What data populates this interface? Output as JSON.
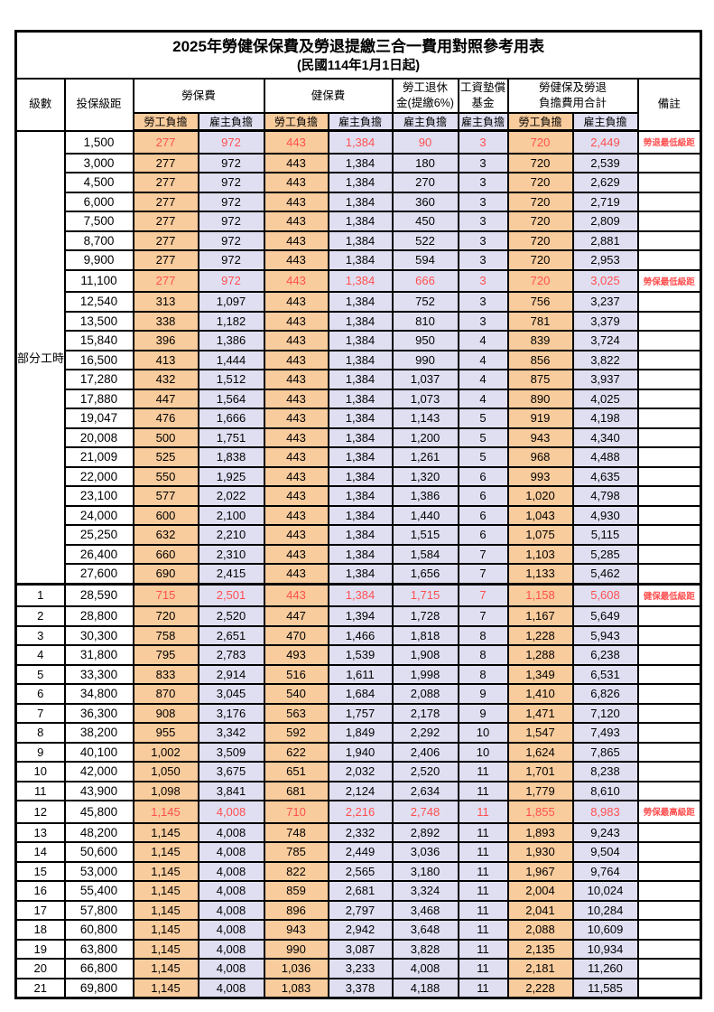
{
  "title": "2025年勞健保保費及勞退提繳三合一費用對照參考用表",
  "subtitle": "(民國114年1月1日起)",
  "colors": {
    "employee_bg": "#F9CC9D",
    "employer_bg": "#E0DFF2",
    "highlight_text": "#FF5050",
    "border": "#000000"
  },
  "header": {
    "level": "級數",
    "bracket": "投保級距",
    "labor_ins": "勞保費",
    "health_ins": "健保費",
    "pension": "勞工退休\n金(提繳6%)",
    "wage_fund": "工資墊償\n基金",
    "total": "勞健保及勞退\n負擔費用合計",
    "note": "備註",
    "employee": "勞工負擔",
    "employer": "雇主負擔"
  },
  "part_time_label": "部分工時",
  "rows": [
    {
      "level": "",
      "bracket": "1,500",
      "values": [
        "277",
        "972",
        "443",
        "1,384",
        "90",
        "3",
        "720",
        "2,449"
      ],
      "note": "勞退最低級距"
    },
    {
      "level": "",
      "bracket": "3,000",
      "values": [
        "277",
        "972",
        "443",
        "1,384",
        "180",
        "3",
        "720",
        "2,539"
      ],
      "note": ""
    },
    {
      "level": "",
      "bracket": "4,500",
      "values": [
        "277",
        "972",
        "443",
        "1,384",
        "270",
        "3",
        "720",
        "2,629"
      ],
      "note": ""
    },
    {
      "level": "",
      "bracket": "6,000",
      "values": [
        "277",
        "972",
        "443",
        "1,384",
        "360",
        "3",
        "720",
        "2,719"
      ],
      "note": ""
    },
    {
      "level": "",
      "bracket": "7,500",
      "values": [
        "277",
        "972",
        "443",
        "1,384",
        "450",
        "3",
        "720",
        "2,809"
      ],
      "note": ""
    },
    {
      "level": "",
      "bracket": "8,700",
      "values": [
        "277",
        "972",
        "443",
        "1,384",
        "522",
        "3",
        "720",
        "2,881"
      ],
      "note": ""
    },
    {
      "level": "",
      "bracket": "9,900",
      "values": [
        "277",
        "972",
        "443",
        "1,384",
        "594",
        "3",
        "720",
        "2,953"
      ],
      "note": ""
    },
    {
      "level": "",
      "bracket": "11,100",
      "values": [
        "277",
        "972",
        "443",
        "1,384",
        "666",
        "3",
        "720",
        "3,025"
      ],
      "note": "勞保最低級距"
    },
    {
      "level": "",
      "bracket": "12,540",
      "values": [
        "313",
        "1,097",
        "443",
        "1,384",
        "752",
        "3",
        "756",
        "3,237"
      ],
      "note": ""
    },
    {
      "level": "",
      "bracket": "13,500",
      "values": [
        "338",
        "1,182",
        "443",
        "1,384",
        "810",
        "3",
        "781",
        "3,379"
      ],
      "note": ""
    },
    {
      "level": "",
      "bracket": "15,840",
      "values": [
        "396",
        "1,386",
        "443",
        "1,384",
        "950",
        "4",
        "839",
        "3,724"
      ],
      "note": ""
    },
    {
      "level": "",
      "bracket": "16,500",
      "values": [
        "413",
        "1,444",
        "443",
        "1,384",
        "990",
        "4",
        "856",
        "3,822"
      ],
      "note": ""
    },
    {
      "level": "",
      "bracket": "17,280",
      "values": [
        "432",
        "1,512",
        "443",
        "1,384",
        "1,037",
        "4",
        "875",
        "3,937"
      ],
      "note": ""
    },
    {
      "level": "",
      "bracket": "17,880",
      "values": [
        "447",
        "1,564",
        "443",
        "1,384",
        "1,073",
        "4",
        "890",
        "4,025"
      ],
      "note": ""
    },
    {
      "level": "",
      "bracket": "19,047",
      "values": [
        "476",
        "1,666",
        "443",
        "1,384",
        "1,143",
        "5",
        "919",
        "4,198"
      ],
      "note": ""
    },
    {
      "level": "",
      "bracket": "20,008",
      "values": [
        "500",
        "1,751",
        "443",
        "1,384",
        "1,200",
        "5",
        "943",
        "4,340"
      ],
      "note": ""
    },
    {
      "level": "",
      "bracket": "21,009",
      "values": [
        "525",
        "1,838",
        "443",
        "1,384",
        "1,261",
        "5",
        "968",
        "4,488"
      ],
      "note": ""
    },
    {
      "level": "",
      "bracket": "22,000",
      "values": [
        "550",
        "1,925",
        "443",
        "1,384",
        "1,320",
        "6",
        "993",
        "4,635"
      ],
      "note": ""
    },
    {
      "level": "",
      "bracket": "23,100",
      "values": [
        "577",
        "2,022",
        "443",
        "1,384",
        "1,386",
        "6",
        "1,020",
        "4,798"
      ],
      "note": ""
    },
    {
      "level": "",
      "bracket": "24,000",
      "values": [
        "600",
        "2,100",
        "443",
        "1,384",
        "1,440",
        "6",
        "1,043",
        "4,930"
      ],
      "note": ""
    },
    {
      "level": "",
      "bracket": "25,250",
      "values": [
        "632",
        "2,210",
        "443",
        "1,384",
        "1,515",
        "6",
        "1,075",
        "5,115"
      ],
      "note": ""
    },
    {
      "level": "",
      "bracket": "26,400",
      "values": [
        "660",
        "2,310",
        "443",
        "1,384",
        "1,584",
        "7",
        "1,103",
        "5,285"
      ],
      "note": ""
    },
    {
      "level": "",
      "bracket": "27,600",
      "values": [
        "690",
        "2,415",
        "443",
        "1,384",
        "1,656",
        "7",
        "1,133",
        "5,462"
      ],
      "note": ""
    },
    {
      "level": "1",
      "bracket": "28,590",
      "values": [
        "715",
        "2,501",
        "443",
        "1,384",
        "1,715",
        "7",
        "1,158",
        "5,608"
      ],
      "note": "健保最低級距",
      "section_start": true
    },
    {
      "level": "2",
      "bracket": "28,800",
      "values": [
        "720",
        "2,520",
        "447",
        "1,394",
        "1,728",
        "7",
        "1,167",
        "5,649"
      ],
      "note": ""
    },
    {
      "level": "3",
      "bracket": "30,300",
      "values": [
        "758",
        "2,651",
        "470",
        "1,466",
        "1,818",
        "8",
        "1,228",
        "5,943"
      ],
      "note": ""
    },
    {
      "level": "4",
      "bracket": "31,800",
      "values": [
        "795",
        "2,783",
        "493",
        "1,539",
        "1,908",
        "8",
        "1,288",
        "6,238"
      ],
      "note": ""
    },
    {
      "level": "5",
      "bracket": "33,300",
      "values": [
        "833",
        "2,914",
        "516",
        "1,611",
        "1,998",
        "8",
        "1,349",
        "6,531"
      ],
      "note": ""
    },
    {
      "level": "6",
      "bracket": "34,800",
      "values": [
        "870",
        "3,045",
        "540",
        "1,684",
        "2,088",
        "9",
        "1,410",
        "6,826"
      ],
      "note": ""
    },
    {
      "level": "7",
      "bracket": "36,300",
      "values": [
        "908",
        "3,176",
        "563",
        "1,757",
        "2,178",
        "9",
        "1,471",
        "7,120"
      ],
      "note": ""
    },
    {
      "level": "8",
      "bracket": "38,200",
      "values": [
        "955",
        "3,342",
        "592",
        "1,849",
        "2,292",
        "10",
        "1,547",
        "7,493"
      ],
      "note": ""
    },
    {
      "level": "9",
      "bracket": "40,100",
      "values": [
        "1,002",
        "3,509",
        "622",
        "1,940",
        "2,406",
        "10",
        "1,624",
        "7,865"
      ],
      "note": ""
    },
    {
      "level": "10",
      "bracket": "42,000",
      "values": [
        "1,050",
        "3,675",
        "651",
        "2,032",
        "2,520",
        "11",
        "1,701",
        "8,238"
      ],
      "note": ""
    },
    {
      "level": "11",
      "bracket": "43,900",
      "values": [
        "1,098",
        "3,841",
        "681",
        "2,124",
        "2,634",
        "11",
        "1,779",
        "8,610"
      ],
      "note": ""
    },
    {
      "level": "12",
      "bracket": "45,800",
      "values": [
        "1,145",
        "4,008",
        "710",
        "2,216",
        "2,748",
        "11",
        "1,855",
        "8,983"
      ],
      "note": "勞保最高級距"
    },
    {
      "level": "13",
      "bracket": "48,200",
      "values": [
        "1,145",
        "4,008",
        "748",
        "2,332",
        "2,892",
        "11",
        "1,893",
        "9,243"
      ],
      "note": ""
    },
    {
      "level": "14",
      "bracket": "50,600",
      "values": [
        "1,145",
        "4,008",
        "785",
        "2,449",
        "3,036",
        "11",
        "1,930",
        "9,504"
      ],
      "note": ""
    },
    {
      "level": "15",
      "bracket": "53,000",
      "values": [
        "1,145",
        "4,008",
        "822",
        "2,565",
        "3,180",
        "11",
        "1,967",
        "9,764"
      ],
      "note": ""
    },
    {
      "level": "16",
      "bracket": "55,400",
      "values": [
        "1,145",
        "4,008",
        "859",
        "2,681",
        "3,324",
        "11",
        "2,004",
        "10,024"
      ],
      "note": ""
    },
    {
      "level": "17",
      "bracket": "57,800",
      "values": [
        "1,145",
        "4,008",
        "896",
        "2,797",
        "3,468",
        "11",
        "2,041",
        "10,284"
      ],
      "note": ""
    },
    {
      "level": "18",
      "bracket": "60,800",
      "values": [
        "1,145",
        "4,008",
        "943",
        "2,942",
        "3,648",
        "11",
        "2,088",
        "10,609"
      ],
      "note": ""
    },
    {
      "level": "19",
      "bracket": "63,800",
      "values": [
        "1,145",
        "4,008",
        "990",
        "3,087",
        "3,828",
        "11",
        "2,135",
        "10,934"
      ],
      "note": ""
    },
    {
      "level": "20",
      "bracket": "66,800",
      "values": [
        "1,145",
        "4,008",
        "1,036",
        "3,233",
        "4,008",
        "11",
        "2,181",
        "11,260"
      ],
      "note": ""
    },
    {
      "level": "21",
      "bracket": "69,800",
      "values": [
        "1,145",
        "4,008",
        "1,083",
        "3,378",
        "4,188",
        "11",
        "2,228",
        "11,585"
      ],
      "note": ""
    }
  ]
}
